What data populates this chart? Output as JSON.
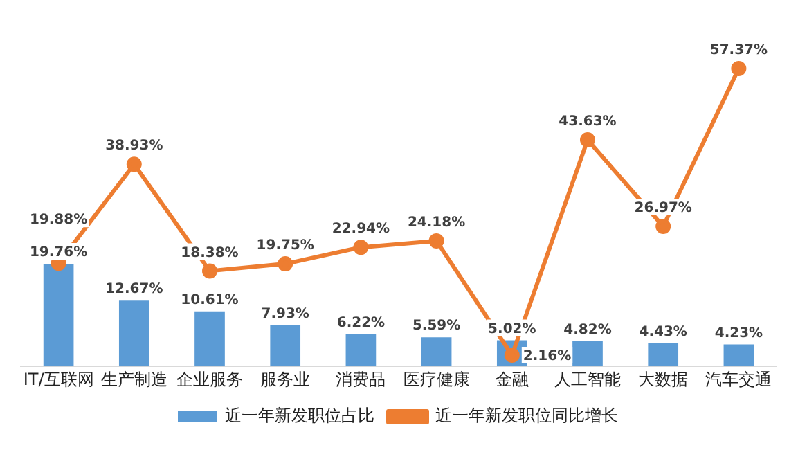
{
  "chart_data": {
    "type": "bar",
    "categories": [
      "IT/互联网",
      "生产制造",
      "企业服务",
      "服务业",
      "消费品",
      "医疗健康",
      "金融",
      "人工智能",
      "大数据",
      "汽车交通"
    ],
    "series": [
      {
        "name": "近一年新发职位占比",
        "color": "#5b9bd5",
        "values": [
          19.76,
          12.67,
          10.61,
          7.93,
          6.22,
          5.59,
          5.02,
          4.82,
          4.43,
          4.23
        ],
        "value_labels": [
          "19.76%",
          "12.67%",
          "10.61%",
          "7.93%",
          "6.22%",
          "5.59%",
          "5.02%",
          "4.82%",
          "4.43%",
          "4.23%"
        ]
      },
      {
        "name": "近一年新发职位同比增长",
        "type": "line",
        "color": "#ed7d31",
        "marker": "circle",
        "values": [
          19.88,
          38.93,
          18.38,
          19.75,
          22.94,
          24.18,
          2.16,
          43.63,
          26.97,
          57.37
        ],
        "value_labels": [
          "19.88%",
          "38.93%",
          "18.38%",
          "19.75%",
          "22.94%",
          "24.18%",
          "2.16%",
          "43.63%",
          "26.97%",
          "57.37%"
        ]
      }
    ],
    "legend": "bottom",
    "grid": false
  }
}
